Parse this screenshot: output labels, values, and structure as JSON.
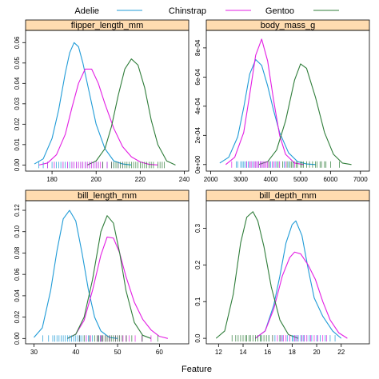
{
  "chart_data": {
    "type": "line",
    "xlabel": "Feature",
    "legend": {
      "placement": "top",
      "entries": [
        {
          "name": "Adelie",
          "color": "#1f9bd7"
        },
        {
          "name": "Chinstrap",
          "color": "#e31ee3"
        },
        {
          "name": "Gentoo",
          "color": "#2f7d3a"
        }
      ]
    },
    "strip_color": "#ffdcb0",
    "panels": [
      {
        "title": "flipper_length_mm",
        "xlim": [
          168,
          242
        ],
        "ylim": [
          -0.003,
          0.066
        ],
        "xticks": [
          180,
          200,
          220,
          240
        ],
        "yticks": [
          0.0,
          0.01,
          0.02,
          0.03,
          0.04,
          0.05,
          0.06
        ],
        "ytick_labels": [
          "0.00",
          "0.01",
          "0.02",
          "0.03",
          "0.04",
          "0.05",
          "0.06"
        ],
        "series": [
          {
            "name": "Adelie",
            "x": [
              172,
              176,
              180,
              183,
              186,
              188,
              190,
              192,
              194,
              197,
              200,
              204,
              208,
              212,
              216
            ],
            "y": [
              0.0005,
              0.003,
              0.013,
              0.027,
              0.045,
              0.055,
              0.06,
              0.058,
              0.05,
              0.035,
              0.02,
              0.008,
              0.002,
              0.0005,
              0.0
            ]
          },
          {
            "name": "Chinstrap",
            "x": [
              174,
              178,
              182,
              186,
              189,
              192,
              195,
              198,
              201,
              204,
              208,
              212,
              216,
              220,
              224,
              228
            ],
            "y": [
              0.0,
              0.001,
              0.005,
              0.015,
              0.028,
              0.04,
              0.047,
              0.047,
              0.04,
              0.03,
              0.018,
              0.009,
              0.004,
              0.0015,
              0.0003,
              0.0
            ]
          },
          {
            "name": "Gentoo",
            "x": [
              196,
              200,
              204,
              207,
              210,
              213,
              216,
              219,
              222,
              225,
              228,
              232,
              236
            ],
            "y": [
              0.0,
              0.002,
              0.008,
              0.019,
              0.034,
              0.047,
              0.052,
              0.049,
              0.038,
              0.022,
              0.01,
              0.002,
              0.0
            ]
          }
        ],
        "rug": [
          {
            "name": "Adelie",
            "values": [
              174,
              176,
              178,
              180,
              181,
              182,
              183,
              184,
              185,
              186,
              187,
              188,
              189,
              190,
              191,
              192,
              193,
              194,
              195,
              196,
              197,
              198,
              199,
              200,
              201,
              203,
              205,
              208,
              210
            ]
          },
          {
            "name": "Chinstrap",
            "values": [
              178,
              181,
              185,
              187,
              189,
              190,
              191,
              192,
              193,
              194,
              195,
              196,
              197,
              198,
              199,
              200,
              201,
              202,
              203,
              205,
              207,
              210,
              212
            ]
          },
          {
            "name": "Gentoo",
            "values": [
              203,
              207,
              208,
              209,
              210,
              211,
              212,
              213,
              214,
              215,
              216,
              217,
              218,
              219,
              220,
              221,
              222,
              223,
              224,
              225,
              226,
              228,
              229,
              230,
              231
            ]
          }
        ]
      },
      {
        "title": "body_mass_g",
        "xlim": [
          1850,
          7300
        ],
        "ylim": [
          -4.5e-05,
          0.00092
        ],
        "xticks": [
          2000,
          3000,
          4000,
          5000,
          6000,
          7000
        ],
        "yticks": [
          0.0,
          0.0002,
          0.0004,
          0.0006,
          0.0008
        ],
        "ytick_labels": [
          "0e+00",
          "2e-04",
          "4e-04",
          "6e-04",
          "8e-04"
        ],
        "series": [
          {
            "name": "Adelie",
            "x": [
              2300,
              2600,
              2900,
              3100,
              3300,
              3500,
              3700,
              3900,
              4100,
              4300,
              4600,
              4900,
              5200,
              5500
            ],
            "y": [
              1e-05,
              5e-05,
              0.00019,
              0.00039,
              0.00062,
              0.00072,
              0.00068,
              0.00054,
              0.00037,
              0.00022,
              8e-05,
              2e-05,
              4e-06,
              0.0
            ]
          },
          {
            "name": "Chinstrap",
            "x": [
              2500,
              2800,
              3100,
              3300,
              3500,
              3700,
              3900,
              4100,
              4300,
              4500,
              4800,
              5100
            ],
            "y": [
              0.0,
              5e-05,
              0.00022,
              0.00048,
              0.00075,
              0.00086,
              0.00071,
              0.00044,
              0.0002,
              7e-05,
              1e-05,
              0.0
            ]
          },
          {
            "name": "Gentoo",
            "x": [
              3600,
              3900,
              4200,
              4500,
              4800,
              5000,
              5200,
              5500,
              5800,
              6100,
              6400,
              6700
            ],
            "y": [
              0.0,
              2e-05,
              0.0001,
              0.0003,
              0.00058,
              0.00069,
              0.00066,
              0.00046,
              0.00022,
              7e-05,
              1e-05,
              0.0
            ]
          }
        ],
        "rug": [
          {
            "name": "Adelie",
            "values": [
              2850,
              2900,
              3000,
              3050,
              3100,
              3150,
              3200,
              3250,
              3300,
              3350,
              3400,
              3450,
              3500,
              3550,
              3600,
              3650,
              3700,
              3750,
              3800,
              3900,
              4000,
              4100,
              4200,
              4300,
              4450,
              4600,
              4750
            ]
          },
          {
            "name": "Chinstrap",
            "values": [
              2700,
              3200,
              3300,
              3350,
              3450,
              3500,
              3550,
              3600,
              3650,
              3700,
              3750,
              3800,
              3850,
              3900,
              3950,
              4050,
              4150,
              4300,
              4500,
              4800
            ]
          },
          {
            "name": "Gentoo",
            "values": [
              3950,
              4250,
              4400,
              4550,
              4650,
              4700,
              4750,
              4850,
              4900,
              5000,
              5050,
              5100,
              5200,
              5300,
              5400,
              5500,
              5550,
              5650,
              5700,
              5800,
              5850,
              6000,
              6300
            ]
          }
        ]
      },
      {
        "title": "bill_length_mm",
        "xlim": [
          28,
          67
        ],
        "ylim": [
          -0.005,
          0.129
        ],
        "xticks": [
          30,
          40,
          50,
          60
        ],
        "yticks": [
          0.0,
          0.02,
          0.04,
          0.06,
          0.08,
          0.1,
          0.12
        ],
        "ytick_labels": [
          "0.00",
          "0.02",
          "0.04",
          "0.06",
          "0.08",
          "0.10",
          "0.12"
        ],
        "series": [
          {
            "name": "Adelie",
            "x": [
              30,
              32,
              34,
              35.5,
              37,
              38.5,
              40,
              41.5,
              43,
              44.5,
              46,
              48,
              50
            ],
            "y": [
              0.001,
              0.01,
              0.045,
              0.082,
              0.112,
              0.12,
              0.11,
              0.08,
              0.046,
              0.02,
              0.007,
              0.001,
              0.0
            ]
          },
          {
            "name": "Chinstrap",
            "x": [
              38,
              40,
              42,
              44,
              46,
              47.5,
              49,
              50.5,
              52,
              54,
              56,
              58,
              60,
              62
            ],
            "y": [
              0.0,
              0.004,
              0.017,
              0.045,
              0.078,
              0.095,
              0.094,
              0.08,
              0.058,
              0.034,
              0.018,
              0.008,
              0.002,
              0.0
            ]
          },
          {
            "name": "Gentoo",
            "x": [
              38,
              40,
              42,
              44,
              46,
              47.5,
              49,
              50.5,
              52,
              54,
              56,
              58
            ],
            "y": [
              0.0,
              0.004,
              0.02,
              0.055,
              0.1,
              0.115,
              0.108,
              0.08,
              0.045,
              0.015,
              0.003,
              0.0
            ]
          }
        ],
        "rug": [
          {
            "name": "Adelie",
            "values": [
              32.1,
              33.5,
              34.5,
              35.0,
              35.5,
              36.0,
              36.5,
              37.0,
              37.5,
              38.0,
              38.5,
              39.0,
              39.5,
              40.0,
              40.5,
              41.0,
              41.5,
              42.0,
              42.5,
              43.0,
              44.0,
              45.5,
              46.0
            ]
          },
          {
            "name": "Chinstrap",
            "values": [
              40.9,
              42.5,
              43.5,
              45.2,
              45.9,
              46.4,
              47.0,
              47.5,
              48.1,
              49.0,
              49.5,
              50.0,
              50.5,
              51.3,
              52.0,
              52.8,
              54.2,
              55.8,
              58.0
            ]
          },
          {
            "name": "Gentoo",
            "values": [
              40.9,
              42.0,
              43.3,
              44.5,
              45.1,
              45.5,
              46.1,
              46.5,
              47.0,
              47.5,
              48.0,
              48.5,
              49.0,
              49.5,
              50.0,
              50.5,
              51.1,
              52.1,
              53.4,
              55.9,
              59.6
            ]
          }
        ]
      },
      {
        "title": "bill_depth_mm",
        "xlim": [
          11,
          24.3
        ],
        "ylim": [
          -0.015,
          0.375
        ],
        "xticks": [
          12,
          14,
          16,
          18,
          20,
          22
        ],
        "yticks": [
          0.0,
          0.1,
          0.2,
          0.3
        ],
        "ytick_labels": [
          "0.0",
          "0.1",
          "0.2",
          "0.3"
        ],
        "series": [
          {
            "name": "Adelie",
            "x": [
              15,
              15.8,
              16.5,
              17.0,
              17.5,
              18.0,
              18.3,
              18.8,
              19.3,
              19.8,
              20.5,
              21.3,
              22.0
            ],
            "y": [
              0.0,
              0.02,
              0.09,
              0.17,
              0.26,
              0.31,
              0.32,
              0.28,
              0.19,
              0.11,
              0.06,
              0.02,
              0.0
            ]
          },
          {
            "name": "Chinstrap",
            "x": [
              15.0,
              15.8,
              16.5,
              17.2,
              17.8,
              18.2,
              18.7,
              19.3,
              19.9,
              20.5,
              21.1,
              21.8,
              22.5
            ],
            "y": [
              0.0,
              0.02,
              0.08,
              0.17,
              0.22,
              0.235,
              0.23,
              0.2,
              0.16,
              0.1,
              0.05,
              0.015,
              0.0
            ]
          },
          {
            "name": "Gentoo",
            "x": [
              11.8,
              12.5,
              13.2,
              13.8,
              14.3,
              14.8,
              15.2,
              15.7,
              16.3,
              17.0,
              17.7,
              18.5
            ],
            "y": [
              0.0,
              0.02,
              0.12,
              0.26,
              0.33,
              0.345,
              0.32,
              0.25,
              0.14,
              0.05,
              0.01,
              0.0
            ]
          }
        ],
        "rug": [
          {
            "name": "Adelie",
            "values": [
              15.5,
              16.1,
              16.6,
              17.0,
              17.2,
              17.6,
              17.8,
              18.0,
              18.1,
              18.3,
              18.5,
              18.7,
              18.9,
              19.0,
              19.2,
              19.4,
              19.6,
              20.0,
              20.3,
              20.7,
              21.1,
              21.5
            ]
          },
          {
            "name": "Chinstrap",
            "values": [
              16.4,
              16.8,
              17.1,
              17.3,
              17.5,
              17.8,
              18.2,
              18.4,
              18.8,
              19.0,
              19.2,
              19.5,
              19.8,
              20.1,
              20.5,
              20.8
            ]
          },
          {
            "name": "Gentoo",
            "values": [
              13.1,
              13.4,
              13.6,
              13.8,
              14.0,
              14.2,
              14.3,
              14.5,
              14.6,
              14.8,
              15.0,
              15.2,
              15.4,
              15.5,
              15.7,
              15.9,
              16.1,
              16.4,
              17.0
            ]
          }
        ]
      }
    ]
  }
}
